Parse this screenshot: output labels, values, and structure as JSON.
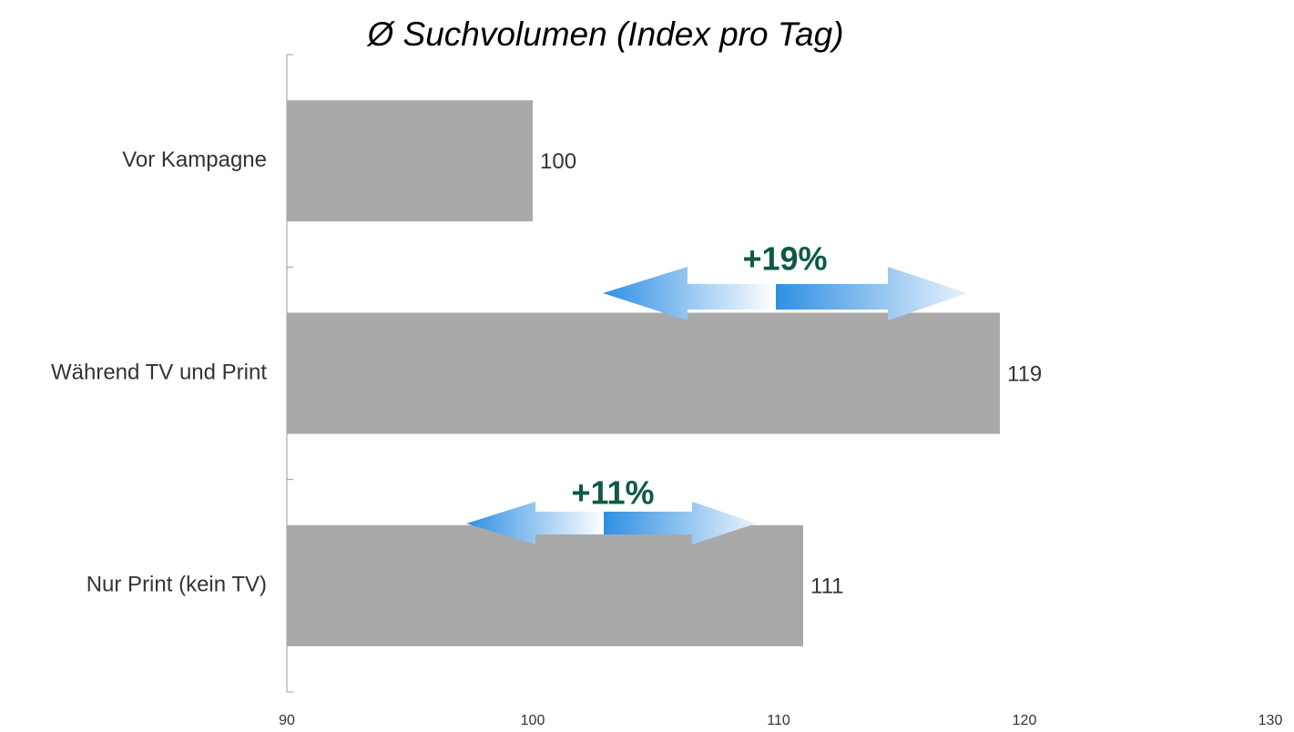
{
  "chart_data": {
    "type": "bar",
    "orientation": "horizontal",
    "title": "Ø Suchvolumen (Index pro Tag)",
    "categories": [
      "Vor Kampagne",
      "Während TV und Print",
      "Nur Print (kein TV)"
    ],
    "values": [
      100,
      119,
      111
    ],
    "color": "#a9a9a9",
    "xlim": [
      90,
      130
    ],
    "xticks": [
      90,
      100,
      110,
      120,
      130
    ],
    "grid": false,
    "annotations": [
      "+19%",
      "+11%"
    ]
  }
}
